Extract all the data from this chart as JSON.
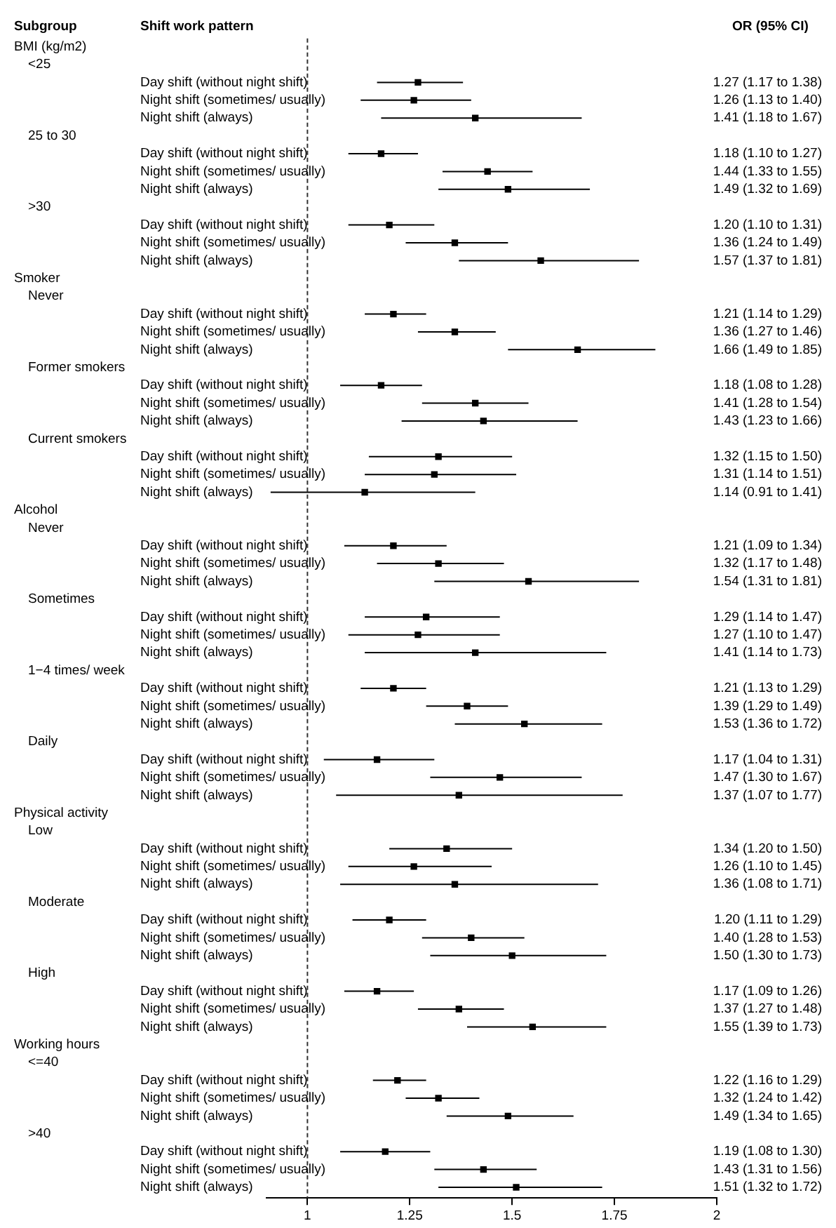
{
  "chart_data": {
    "type": "scatter",
    "orientation": "horizontal",
    "marker": "square",
    "color": "#000000",
    "grid": false,
    "legend": false,
    "annotations": [
      "Subgroup",
      "Shift work pattern",
      "OR (95% CI)",
      "BMI (kg/m2)",
      "<25",
      "25 to 30",
      ">30",
      "Smoker",
      "Never",
      "Former smokers",
      "Current smokers",
      "Alcohol",
      "Never",
      "Sometimes",
      "1−4 times/ week",
      "Daily",
      "Physical activity",
      "Low",
      "Moderate",
      "High",
      "Working hours",
      "<=40",
      ">40"
    ],
    "categories": [
      null,
      null,
      "Day shift (without night shift)",
      "Night shift (sometimes/ usually)",
      "Night shift (always)",
      null,
      "Day shift (without night shift)",
      "Night shift (sometimes/ usually)",
      "Night shift (always)",
      null,
      "Day shift (without night shift)",
      "Night shift (sometimes/ usually)",
      "Night shift (always)",
      null,
      null,
      "Day shift (without night shift)",
      "Night shift (sometimes/ usually)",
      "Night shift (always)",
      null,
      "Day shift (without night shift)",
      "Night shift (sometimes/ usually)",
      "Night shift (always)",
      null,
      "Day shift (without night shift)",
      "Night shift (sometimes/ usually)",
      "Night shift (always)",
      null,
      null,
      "Day shift (without night shift)",
      "Night shift (sometimes/ usually)",
      "Night shift (always)",
      null,
      "Day shift (without night shift)",
      "Night shift (sometimes/ usually)",
      "Night shift (always)",
      null,
      "Day shift (without night shift)",
      "Night shift (sometimes/ usually)",
      "Night shift (always)",
      null,
      "Day shift (without night shift)",
      "Night shift (sometimes/ usually)",
      "Night shift (always)",
      null,
      null,
      "Day shift (without night shift)",
      "Night shift (sometimes/ usually)",
      "Night shift (always)",
      null,
      "Day shift (without night shift)",
      "Night shift (sometimes/ usually)",
      "Night shift (always)",
      null,
      "Day shift (without night shift)",
      "Night shift (sometimes/ usually)",
      "Night shift (always)",
      null,
      null,
      "Day shift (without night shift)",
      "Night shift (sometimes/ usually)",
      "Night shift (always)",
      null,
      "Day shift (without night shift)",
      "Night shift (sometimes/ usually)",
      "Night shift (always)"
    ],
    "values": [
      null,
      null,
      1.27,
      1.26,
      1.41,
      null,
      1.18,
      1.44,
      1.49,
      null,
      1.2,
      1.36,
      1.57,
      null,
      null,
      1.21,
      1.36,
      1.66,
      null,
      1.18,
      1.41,
      1.43,
      null,
      1.32,
      1.31,
      1.14,
      null,
      null,
      1.21,
      1.32,
      1.54,
      null,
      1.29,
      1.27,
      1.41,
      null,
      1.21,
      1.39,
      1.53,
      null,
      1.17,
      1.47,
      1.37,
      null,
      null,
      1.34,
      1.26,
      1.36,
      null,
      1.2,
      1.4,
      1.5,
      null,
      1.17,
      1.37,
      1.55,
      null,
      null,
      1.22,
      1.32,
      1.49,
      null,
      1.19,
      1.43,
      1.51
    ],
    "errors": [
      null,
      null,
      [
        1.17,
        1.38
      ],
      [
        1.13,
        1.4
      ],
      [
        1.18,
        1.67
      ],
      null,
      [
        1.1,
        1.27
      ],
      [
        1.33,
        1.55
      ],
      [
        1.32,
        1.69
      ],
      null,
      [
        1.1,
        1.31
      ],
      [
        1.24,
        1.49
      ],
      [
        1.37,
        1.81
      ],
      null,
      null,
      [
        1.14,
        1.29
      ],
      [
        1.27,
        1.46
      ],
      [
        1.49,
        1.85
      ],
      null,
      [
        1.08,
        1.28
      ],
      [
        1.28,
        1.54
      ],
      [
        1.23,
        1.66
      ],
      null,
      [
        1.15,
        1.5
      ],
      [
        1.14,
        1.51
      ],
      [
        0.91,
        1.41
      ],
      null,
      null,
      [
        1.09,
        1.34
      ],
      [
        1.17,
        1.48
      ],
      [
        1.31,
        1.81
      ],
      null,
      [
        1.14,
        1.47
      ],
      [
        1.1,
        1.47
      ],
      [
        1.14,
        1.73
      ],
      null,
      [
        1.13,
        1.29
      ],
      [
        1.29,
        1.49
      ],
      [
        1.36,
        1.72
      ],
      null,
      [
        1.04,
        1.31
      ],
      [
        1.3,
        1.67
      ],
      [
        1.07,
        1.77
      ],
      null,
      null,
      [
        1.2,
        1.5
      ],
      [
        1.1,
        1.45
      ],
      [
        1.08,
        1.71
      ],
      null,
      [
        1.11,
        1.29
      ],
      [
        1.28,
        1.53
      ],
      [
        1.3,
        1.73
      ],
      null,
      [
        1.09,
        1.26
      ],
      [
        1.27,
        1.48
      ],
      [
        1.39,
        1.73
      ],
      null,
      null,
      [
        1.16,
        1.29
      ],
      [
        1.24,
        1.42
      ],
      [
        1.34,
        1.65
      ],
      null,
      [
        1.08,
        1.3
      ],
      [
        1.31,
        1.56
      ],
      [
        1.32,
        1.72
      ]
    ],
    "value_labels": [
      null,
      null,
      "1.27 (1.17 to 1.38)",
      "1.26 (1.13 to 1.40)",
      "1.41 (1.18 to 1.67)",
      null,
      "1.18 (1.10 to 1.27)",
      "1.44 (1.33 to 1.55)",
      "1.49 (1.32 to 1.69)",
      null,
      "1.20 (1.10 to 1.31)",
      "1.36 (1.24 to 1.49)",
      "1.57 (1.37 to 1.81)",
      null,
      null,
      "1.21 (1.14 to 1.29)",
      "1.36 (1.27 to 1.46)",
      "1.66 (1.49 to 1.85)",
      null,
      "1.18 (1.08 to 1.28)",
      "1.41 (1.28 to 1.54)",
      "1.43 (1.23 to 1.66)",
      null,
      "1.32 (1.15 to 1.50)",
      "1.31 (1.14 to 1.51)",
      "1.14 (0.91 to 1.41)",
      null,
      null,
      "1.21 (1.09 to 1.34)",
      "1.32 (1.17 to 1.48)",
      "1.54 (1.31 to 1.81)",
      null,
      "1.29 (1.14 to 1.47)",
      "1.27 (1.10 to 1.47)",
      "1.41 (1.14 to 1.73)",
      null,
      "1.21 (1.13 to 1.29)",
      "1.39 (1.29 to 1.49)",
      "1.53 (1.36 to 1.72)",
      null,
      "1.17 (1.04 to 1.31)",
      "1.47 (1.30 to 1.67)",
      "1.37 (1.07 to 1.77)",
      null,
      null,
      "1.34 (1.20 to 1.50)",
      "1.26 (1.10 to 1.45)",
      "1.36 (1.08 to 1.71)",
      null,
      "1.20 (1.11 to 1.29)",
      "1.40 (1.28 to 1.53)",
      "1.50 (1.30 to 1.73)",
      null,
      "1.17 (1.09 to 1.26)",
      "1.37 (1.27 to 1.48)",
      "1.55 (1.39 to 1.73)",
      null,
      null,
      "1.22 (1.16 to 1.29)",
      "1.32 (1.24 to 1.42)",
      "1.49 (1.34 to 1.65)",
      null,
      "1.19 (1.08 to 1.30)",
      "1.43 (1.31 to 1.56)",
      "1.51 (1.32 to 1.72)"
    ],
    "xlim": [
      0.9,
      2
    ],
    "xticks": [
      1,
      1.25,
      1.5,
      1.75,
      2
    ],
    "ref_lines": [
      {
        "axis": "x",
        "value": 1,
        "line_style": "dashed",
        "color": "#333333"
      }
    ]
  }
}
